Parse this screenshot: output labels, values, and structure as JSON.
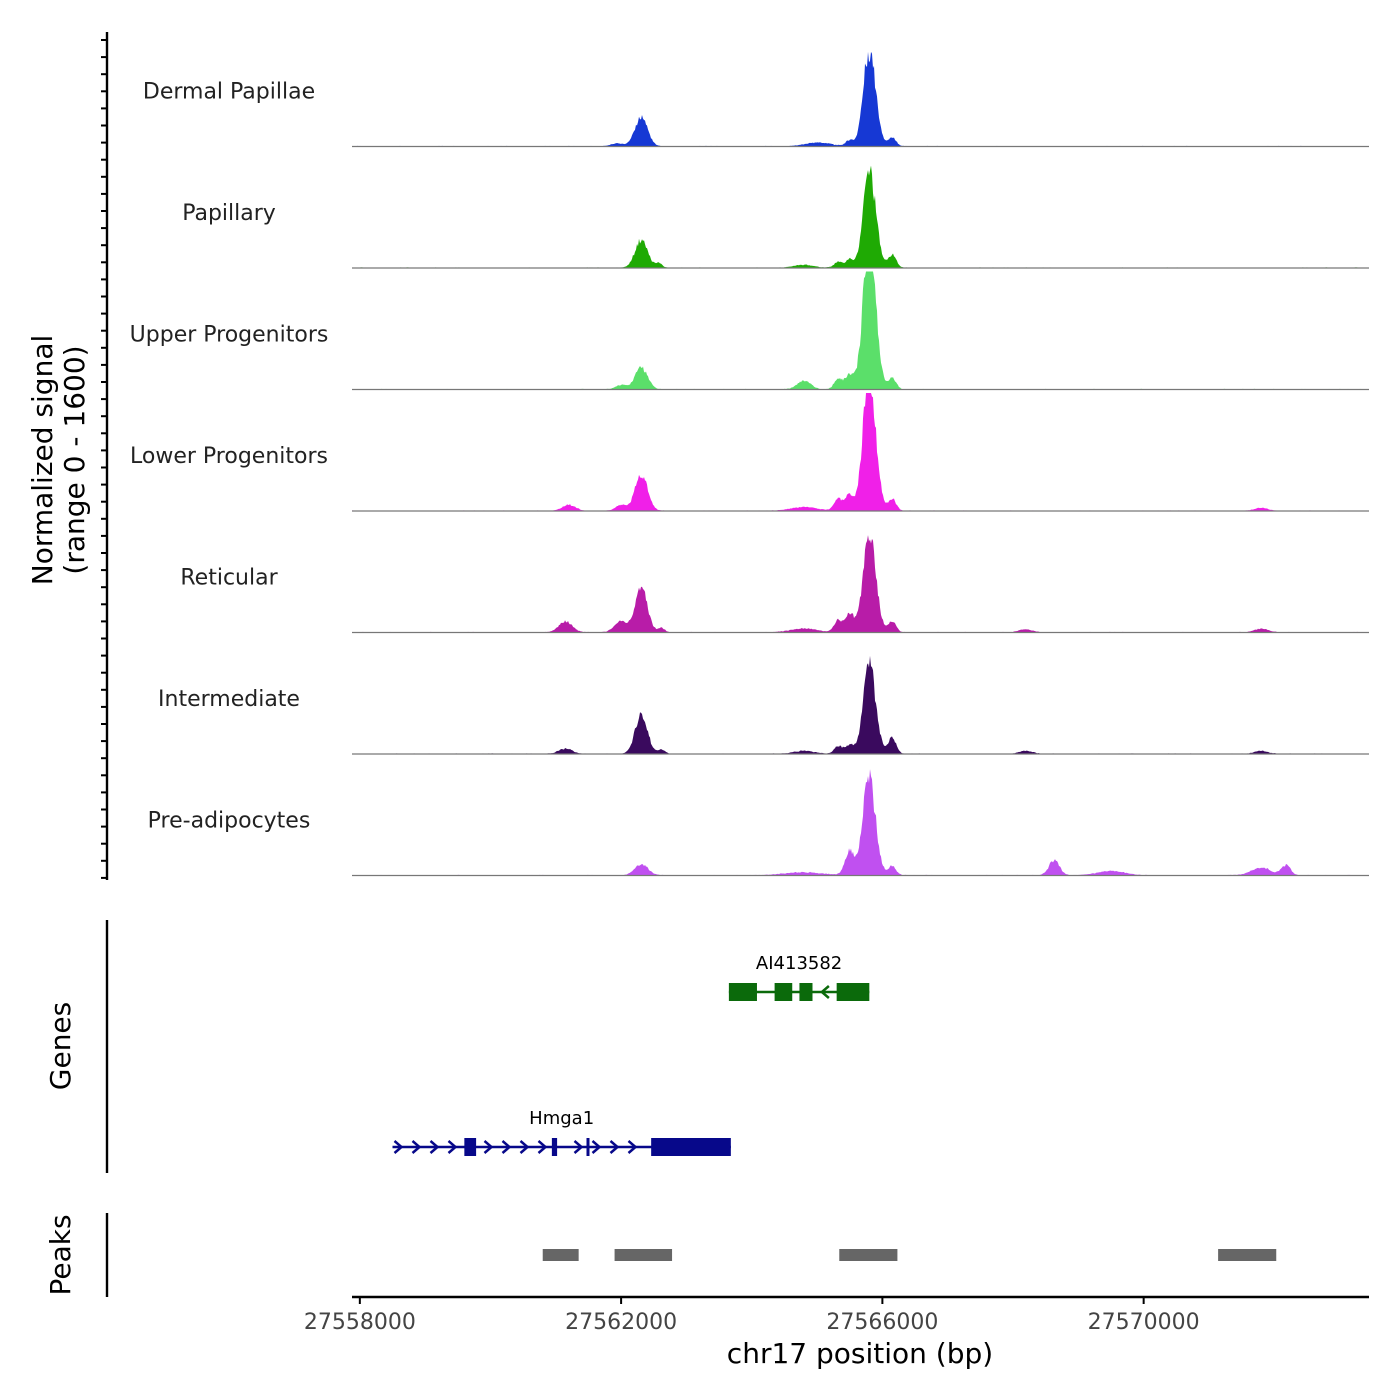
{
  "chart_data": {
    "type": "area",
    "title": "",
    "signal_axis_label": "Normalized signal",
    "signal_axis_range_label": "(range 0 - 1600)",
    "ylim": [
      0,
      1600
    ],
    "xlabel": "chr17 position (bp)",
    "xlim": [
      27557880,
      27573450
    ],
    "xticks": [
      27558000,
      27562000,
      27566000,
      27570000
    ],
    "xtick_labels": [
      "27558000",
      "27562000",
      "27566000",
      "27570000"
    ],
    "tracks": [
      {
        "name": "Dermal Papillae",
        "color": "#1638D4",
        "peaks": [
          [
            27562310,
            400,
            95
          ],
          [
            27565820,
            1000,
            95
          ],
          [
            27565760,
            360,
            80
          ],
          [
            27565500,
            80,
            60
          ],
          [
            27566150,
            120,
            60
          ],
          [
            27565020,
            50,
            200
          ],
          [
            27561950,
            40,
            100
          ]
        ]
      },
      {
        "name": "Papillary",
        "color": "#1FAA04",
        "peaks": [
          [
            27562310,
            380,
            95
          ],
          [
            27565820,
            1000,
            95
          ],
          [
            27565760,
            380,
            80
          ],
          [
            27565500,
            120,
            60
          ],
          [
            27565320,
            80,
            60
          ],
          [
            27566150,
            180,
            60
          ],
          [
            27562580,
            60,
            50
          ],
          [
            27564800,
            40,
            150
          ]
        ]
      },
      {
        "name": "Upper Progenitors",
        "color": "#5BDF6A",
        "peaks": [
          [
            27562310,
            300,
            95
          ],
          [
            27565820,
            1500,
            95
          ],
          [
            27565760,
            700,
            80
          ],
          [
            27565500,
            200,
            70
          ],
          [
            27565320,
            140,
            60
          ],
          [
            27566150,
            150,
            60
          ],
          [
            27564800,
            120,
            100
          ],
          [
            27562000,
            60,
            80
          ]
        ]
      },
      {
        "name": "Lower Progenitors",
        "color": "#F020E8",
        "peaks": [
          [
            27562310,
            500,
            95
          ],
          [
            27565820,
            1380,
            95
          ],
          [
            27565760,
            600,
            80
          ],
          [
            27565500,
            220,
            70
          ],
          [
            27565320,
            160,
            60
          ],
          [
            27566150,
            160,
            60
          ],
          [
            27561200,
            80,
            100
          ],
          [
            27562000,
            80,
            80
          ],
          [
            27564800,
            50,
            200
          ],
          [
            27571800,
            40,
            100
          ]
        ]
      },
      {
        "name": "Reticular",
        "color": "#B81CA8",
        "peaks": [
          [
            27562310,
            580,
            95
          ],
          [
            27565820,
            1000,
            95
          ],
          [
            27565760,
            450,
            80
          ],
          [
            27565500,
            250,
            70
          ],
          [
            27565320,
            160,
            60
          ],
          [
            27566150,
            150,
            60
          ],
          [
            27561150,
            150,
            100
          ],
          [
            27562000,
            150,
            100
          ],
          [
            27562620,
            60,
            50
          ],
          [
            27564800,
            50,
            200
          ],
          [
            27568200,
            40,
            100
          ],
          [
            27571800,
            50,
            100
          ]
        ]
      },
      {
        "name": "Intermediate",
        "color": "#3A0A5E",
        "peaks": [
          [
            27562310,
            520,
            95
          ],
          [
            27565820,
            900,
            95
          ],
          [
            27565760,
            400,
            80
          ],
          [
            27565500,
            120,
            70
          ],
          [
            27565320,
            100,
            60
          ],
          [
            27566150,
            210,
            60
          ],
          [
            27561150,
            70,
            100
          ],
          [
            27562620,
            60,
            50
          ],
          [
            27564800,
            40,
            150
          ],
          [
            27568200,
            40,
            100
          ],
          [
            27571800,
            40,
            100
          ]
        ]
      },
      {
        "name": "Pre-adipocytes",
        "color": "#C050F0",
        "peaks": [
          [
            27562310,
            150,
            100
          ],
          [
            27565820,
            900,
            95
          ],
          [
            27565760,
            520,
            80
          ],
          [
            27565500,
            330,
            70
          ],
          [
            27566150,
            120,
            60
          ],
          [
            27568630,
            200,
            80
          ],
          [
            27571800,
            100,
            150
          ],
          [
            27572180,
            130,
            70
          ],
          [
            27569500,
            60,
            200
          ],
          [
            27564800,
            40,
            300
          ]
        ]
      }
    ],
    "genes": [
      {
        "name": "AI413582",
        "color": "#0B6A0B",
        "strand": "-",
        "start": 27563650,
        "end": 27565800,
        "exons": [
          [
            27563650,
            27564080
          ],
          [
            27564350,
            27564620
          ],
          [
            27564730,
            27564930
          ],
          [
            27565300,
            27565800
          ]
        ]
      },
      {
        "name": "Hmga1",
        "color": "#07088A",
        "strand": "+",
        "start": 27558500,
        "end": 27563680,
        "exons": [
          [
            27559600,
            27559780
          ],
          [
            27560940,
            27561020
          ],
          [
            27561470,
            27561500
          ],
          [
            27562460,
            27563680
          ]
        ]
      }
    ],
    "genes_track_label": "Genes",
    "peaks_track_label": "Peaks",
    "peak_color": "#666666",
    "peak_regions": [
      [
        27560800,
        27561350
      ],
      [
        27561900,
        27562780
      ],
      [
        27565340,
        27566230
      ],
      [
        27571140,
        27572030
      ]
    ]
  }
}
